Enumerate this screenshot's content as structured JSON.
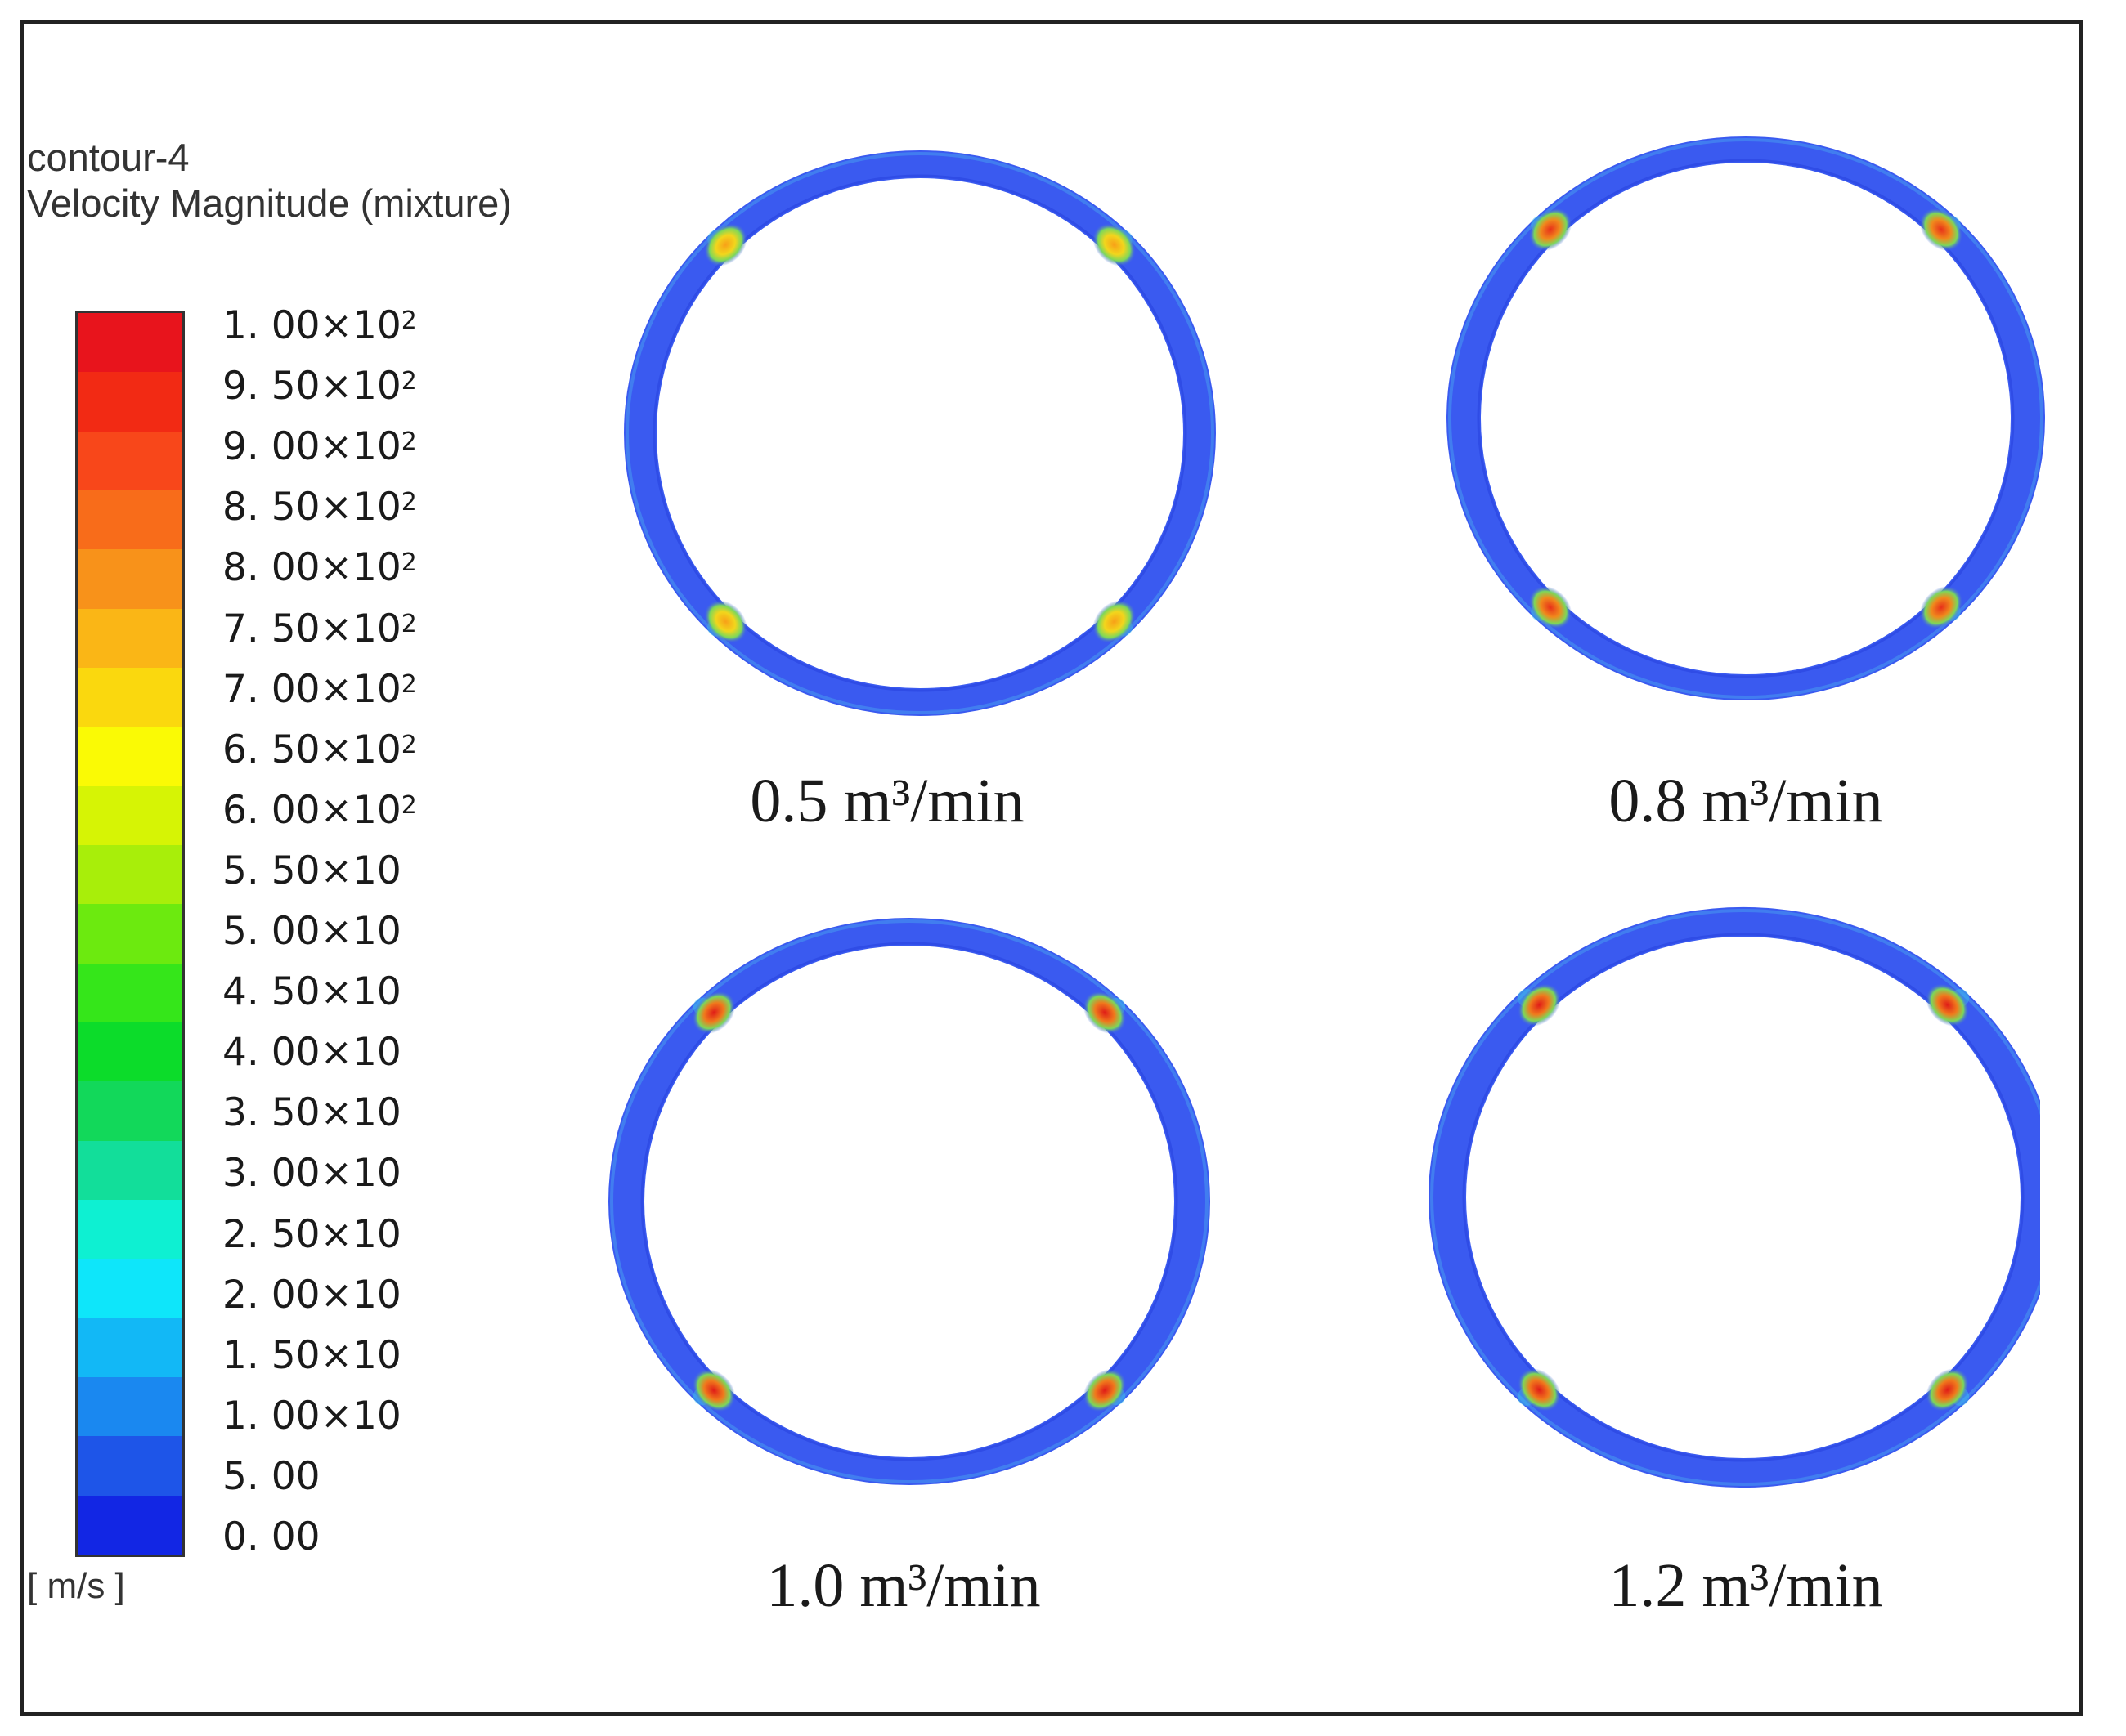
{
  "legend": {
    "name": "contour-4",
    "quantity": "Velocity Magnitude (mixture)",
    "unit": "[ m/s ]",
    "ticks": [
      {
        "mantissa": "1. 00",
        "suffix": "×10",
        "exp": "2"
      },
      {
        "mantissa": "9. 50",
        "suffix": "×10",
        "exp": "2"
      },
      {
        "mantissa": "9. 00",
        "suffix": "×10",
        "exp": "2"
      },
      {
        "mantissa": "8. 50",
        "suffix": "×10",
        "exp": "2"
      },
      {
        "mantissa": "8. 00",
        "suffix": "×10",
        "exp": "2"
      },
      {
        "mantissa": "7. 50",
        "suffix": "×10",
        "exp": "2"
      },
      {
        "mantissa": "7. 00",
        "suffix": "×10",
        "exp": "2"
      },
      {
        "mantissa": "6. 50",
        "suffix": "×10",
        "exp": "2"
      },
      {
        "mantissa": "6. 00",
        "suffix": "×10",
        "exp": "2"
      },
      {
        "mantissa": "5. 50",
        "suffix": "×10",
        "exp": ""
      },
      {
        "mantissa": "5. 00",
        "suffix": "×10",
        "exp": ""
      },
      {
        "mantissa": "4. 50",
        "suffix": "×10",
        "exp": ""
      },
      {
        "mantissa": "4. 00",
        "suffix": "×10",
        "exp": ""
      },
      {
        "mantissa": "3. 50",
        "suffix": "×10",
        "exp": ""
      },
      {
        "mantissa": "3. 00",
        "suffix": "×10",
        "exp": ""
      },
      {
        "mantissa": "2. 50",
        "suffix": "×10",
        "exp": ""
      },
      {
        "mantissa": "2. 00",
        "suffix": "×10",
        "exp": ""
      },
      {
        "mantissa": "1. 50",
        "suffix": "×10",
        "exp": ""
      },
      {
        "mantissa": "1. 00",
        "suffix": "×10",
        "exp": ""
      },
      {
        "mantissa": "5. 00",
        "suffix": "",
        "exp": ""
      },
      {
        "mantissa": "0. 00",
        "suffix": "",
        "exp": ""
      }
    ],
    "band_colors": [
      "#e8141c",
      "#f22a14",
      "#f8471a",
      "#f86c1a",
      "#f8921a",
      "#fab616",
      "#fad80e",
      "#fafa05",
      "#d6f405",
      "#a8ee0a",
      "#6cea0f",
      "#35e61a",
      "#0cdc2a",
      "#12d85a",
      "#12de9a",
      "#0ef0d2",
      "#0ee6fa",
      "#12b8f6",
      "#1a88f0",
      "#1e55e8",
      "#1226e4"
    ]
  },
  "panels": [
    {
      "label": "0.5 m³/min",
      "hotspot_color": "#f2d61c",
      "hotspot_core": "#f8a018"
    },
    {
      "label": "0.8 m³/min",
      "hotspot_color": "#f08a1c",
      "hotspot_core": "#e8301a"
    },
    {
      "label": "1.0 m³/min",
      "hotspot_color": "#f07a1c",
      "hotspot_core": "#e01c18"
    },
    {
      "label": "1.2 m³/min",
      "hotspot_color": "#f07a1c",
      "hotspot_core": "#e01c18"
    }
  ],
  "colors": {
    "ring_fill": "#3a5af0",
    "ring_inner_shade": "#2f4ce6",
    "ring_edge_tint": "#48a0f0"
  }
}
